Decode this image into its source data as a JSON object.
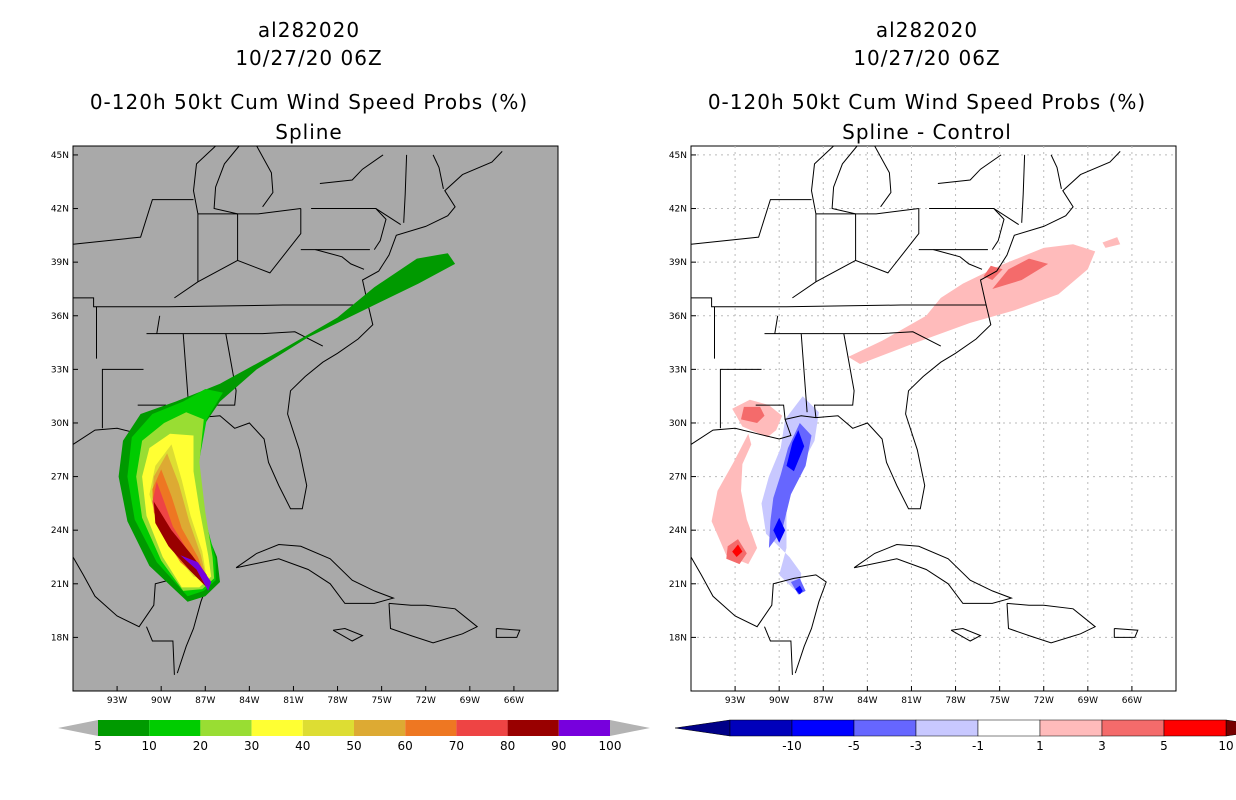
{
  "left_panel": {
    "storm_id": "al282020",
    "datetime": "10/27/20 06Z",
    "product": "0-120h 50kt Cum Wind Speed Probs (%)",
    "subtitle": "Spline",
    "lat_labels": [
      "45N",
      "42N",
      "39N",
      "36N",
      "33N",
      "30N",
      "27N",
      "24N",
      "21N",
      "18N"
    ],
    "lon_labels": [
      "93W",
      "90W",
      "87W",
      "84W",
      "81W",
      "78W",
      "75W",
      "72W",
      "69W",
      "66W"
    ],
    "colorbar": {
      "labels": [
        "5",
        "10",
        "20",
        "30",
        "40",
        "50",
        "60",
        "70",
        "80",
        "90",
        "100"
      ],
      "colors": [
        "#009a00",
        "#00cc00",
        "#99dd33",
        "#ffff33",
        "#dddd33",
        "#ddaa33",
        "#ee7722",
        "#ee4444",
        "#990000",
        "#7700dd"
      ],
      "end_color": "#b3b3b3"
    },
    "background_color": "#a9a9a9"
  },
  "right_panel": {
    "storm_id": "al282020",
    "datetime": "10/27/20 06Z",
    "product": "0-120h 50kt Cum Wind Speed Probs (%)",
    "subtitle": "Spline - Control",
    "lat_labels": [
      "45N",
      "42N",
      "39N",
      "36N",
      "33N",
      "30N",
      "27N",
      "24N",
      "21N",
      "18N"
    ],
    "lon_labels": [
      "93W",
      "90W",
      "87W",
      "84W",
      "81W",
      "78W",
      "75W",
      "72W",
      "69W",
      "66W"
    ],
    "colorbar": {
      "labels": [
        "-10",
        "-5",
        "-3",
        "-1",
        "1",
        "3",
        "5",
        "10"
      ],
      "colors": [
        "#0000bb",
        "#0000ff",
        "#6666ff",
        "#c8c8ff",
        "#ffffff",
        "#ffbbbb",
        "#f46b6b",
        "#ff0000"
      ],
      "start_color": "#000088",
      "end_color": "#770000"
    },
    "background_color": "#ffffff"
  }
}
